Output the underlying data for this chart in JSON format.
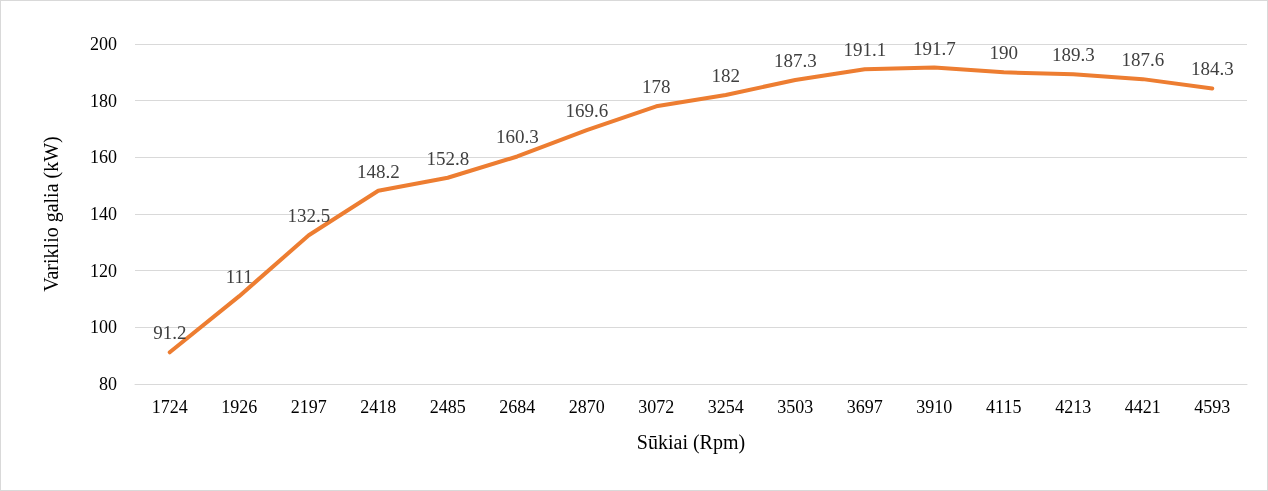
{
  "chart_data": {
    "type": "line",
    "xlabel": "Sūkiai (Rpm)",
    "ylabel": "Variklio galia (kW)",
    "categories": [
      "1724",
      "1926",
      "2197",
      "2418",
      "2485",
      "2684",
      "2870",
      "3072",
      "3254",
      "3503",
      "3697",
      "3910",
      "4115",
      "4213",
      "4421",
      "4593"
    ],
    "series": [
      {
        "color": "#ed7d31",
        "values": [
          91.2,
          111,
          132.5,
          148.2,
          152.8,
          160.3,
          169.6,
          178,
          182,
          187.3,
          191.1,
          191.7,
          190,
          189.3,
          187.6,
          184.3
        ]
      }
    ],
    "ylim": [
      80,
      200
    ],
    "yticks": [
      80,
      100,
      120,
      140,
      160,
      180,
      200
    ],
    "grid": "y",
    "marker": "none",
    "line_style": "solid",
    "data_labels": true
  }
}
